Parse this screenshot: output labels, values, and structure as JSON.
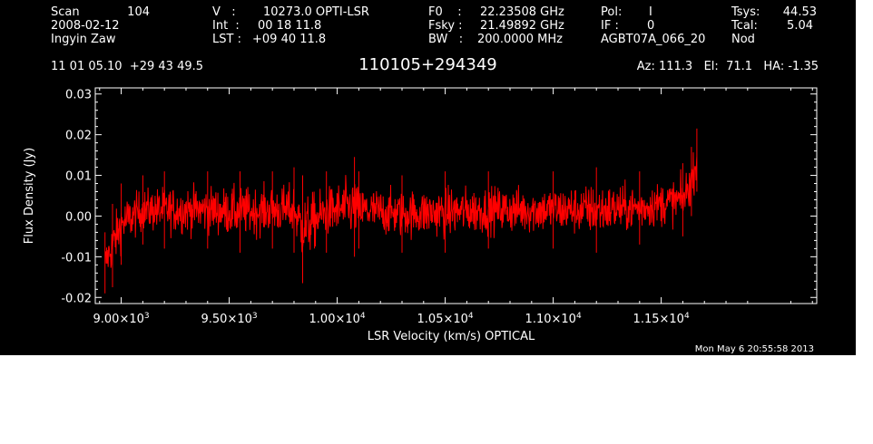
{
  "header": {
    "col1": {
      "scan_label": "Scan",
      "scan_value": "104",
      "date": "2008-02-12",
      "observer": "Ingyin Zaw"
    },
    "col2": {
      "v_label": "V   :",
      "v_value": "10273.0 OPTI-LSR",
      "int_label": "Int  :",
      "int_value": "00 18 11.8",
      "lst_label": "LST :",
      "lst_value": "+09 40 11.8"
    },
    "col3": {
      "f0_label": "F0    :",
      "f0_value": "22.23508 GHz",
      "fsky_label": "Fsky :",
      "fsky_value": "21.49892 GHz",
      "bw_label": "BW   :",
      "bw_value": "200.0000 MHz"
    },
    "col4": {
      "pol_label": "Pol:",
      "pol_value": "I",
      "if_label": "IF :",
      "if_value": "0",
      "project": "AGBT07A_066_20"
    },
    "col5": {
      "tsys_label": "Tsys:",
      "tsys_value": "44.53",
      "tcal_label": "Tcal:",
      "tcal_value": "5.04",
      "mode": "Nod"
    },
    "coords": "11 01 05.10  +29 43 49.5",
    "source": "110105+294349",
    "pointing": "Az: 111.3   El:  71.1   HA: -1.35",
    "timestamp": "Mon May  6 20:55:58 2013"
  },
  "colors": {
    "background": "#000000",
    "foreground": "#ffffff",
    "trace": "#ff0000"
  },
  "chart_data": {
    "type": "line",
    "xlabel": "LSR Velocity (km/s) OPTICAL",
    "ylabel": "Flux Density (Jy)",
    "xlim": [
      8880,
      12220
    ],
    "ylim": [
      -0.0215,
      0.0315
    ],
    "x_ticks": [
      9000,
      9500,
      10000,
      10500,
      11000,
      11500
    ],
    "x_tick_labels": [
      {
        "mant": "9.00×10",
        "exp": "3"
      },
      {
        "mant": "9.50×10",
        "exp": "3"
      },
      {
        "mant": "1.00×10",
        "exp": "4"
      },
      {
        "mant": "1.05×10",
        "exp": "4"
      },
      {
        "mant": "1.10×10",
        "exp": "4"
      },
      {
        "mant": "1.15×10",
        "exp": "4"
      }
    ],
    "y_ticks": [
      -0.02,
      -0.01,
      0.0,
      0.01,
      0.02,
      0.03
    ],
    "y_tick_labels": [
      "-0.02",
      "-0.01",
      "0.00",
      "0.01",
      "0.02",
      "0.03"
    ],
    "grid": false,
    "series": [
      {
        "x_range": [
          8925,
          11665
        ],
        "envelope": [
          {
            "x": 8925,
            "min": -0.019,
            "max": -0.004
          },
          {
            "x": 8960,
            "min": -0.0175,
            "max": 0.003
          },
          {
            "x": 9000,
            "min": -0.012,
            "max": 0.008
          },
          {
            "x": 9100,
            "min": -0.007,
            "max": 0.01
          },
          {
            "x": 9200,
            "min": -0.008,
            "max": 0.011
          },
          {
            "x": 9400,
            "min": -0.008,
            "max": 0.011
          },
          {
            "x": 9550,
            "min": -0.009,
            "max": 0.011
          },
          {
            "x": 9700,
            "min": -0.008,
            "max": 0.011
          },
          {
            "x": 9800,
            "min": -0.009,
            "max": 0.012
          },
          {
            "x": 9840,
            "min": -0.0165,
            "max": 0.01
          },
          {
            "x": 9950,
            "min": -0.009,
            "max": 0.011
          },
          {
            "x": 10080,
            "min": -0.01,
            "max": 0.0145
          },
          {
            "x": 10100,
            "min": -0.008,
            "max": 0.011
          },
          {
            "x": 10300,
            "min": -0.009,
            "max": 0.01
          },
          {
            "x": 10500,
            "min": -0.009,
            "max": 0.011
          },
          {
            "x": 10700,
            "min": -0.008,
            "max": 0.011
          },
          {
            "x": 11000,
            "min": -0.008,
            "max": 0.011
          },
          {
            "x": 11200,
            "min": -0.009,
            "max": 0.012
          },
          {
            "x": 11400,
            "min": -0.007,
            "max": 0.011
          },
          {
            "x": 11600,
            "min": -0.005,
            "max": 0.013
          },
          {
            "x": 11640,
            "min": 0.0,
            "max": 0.017
          },
          {
            "x": 11665,
            "min": 0.006,
            "max": 0.0215
          }
        ]
      }
    ]
  }
}
